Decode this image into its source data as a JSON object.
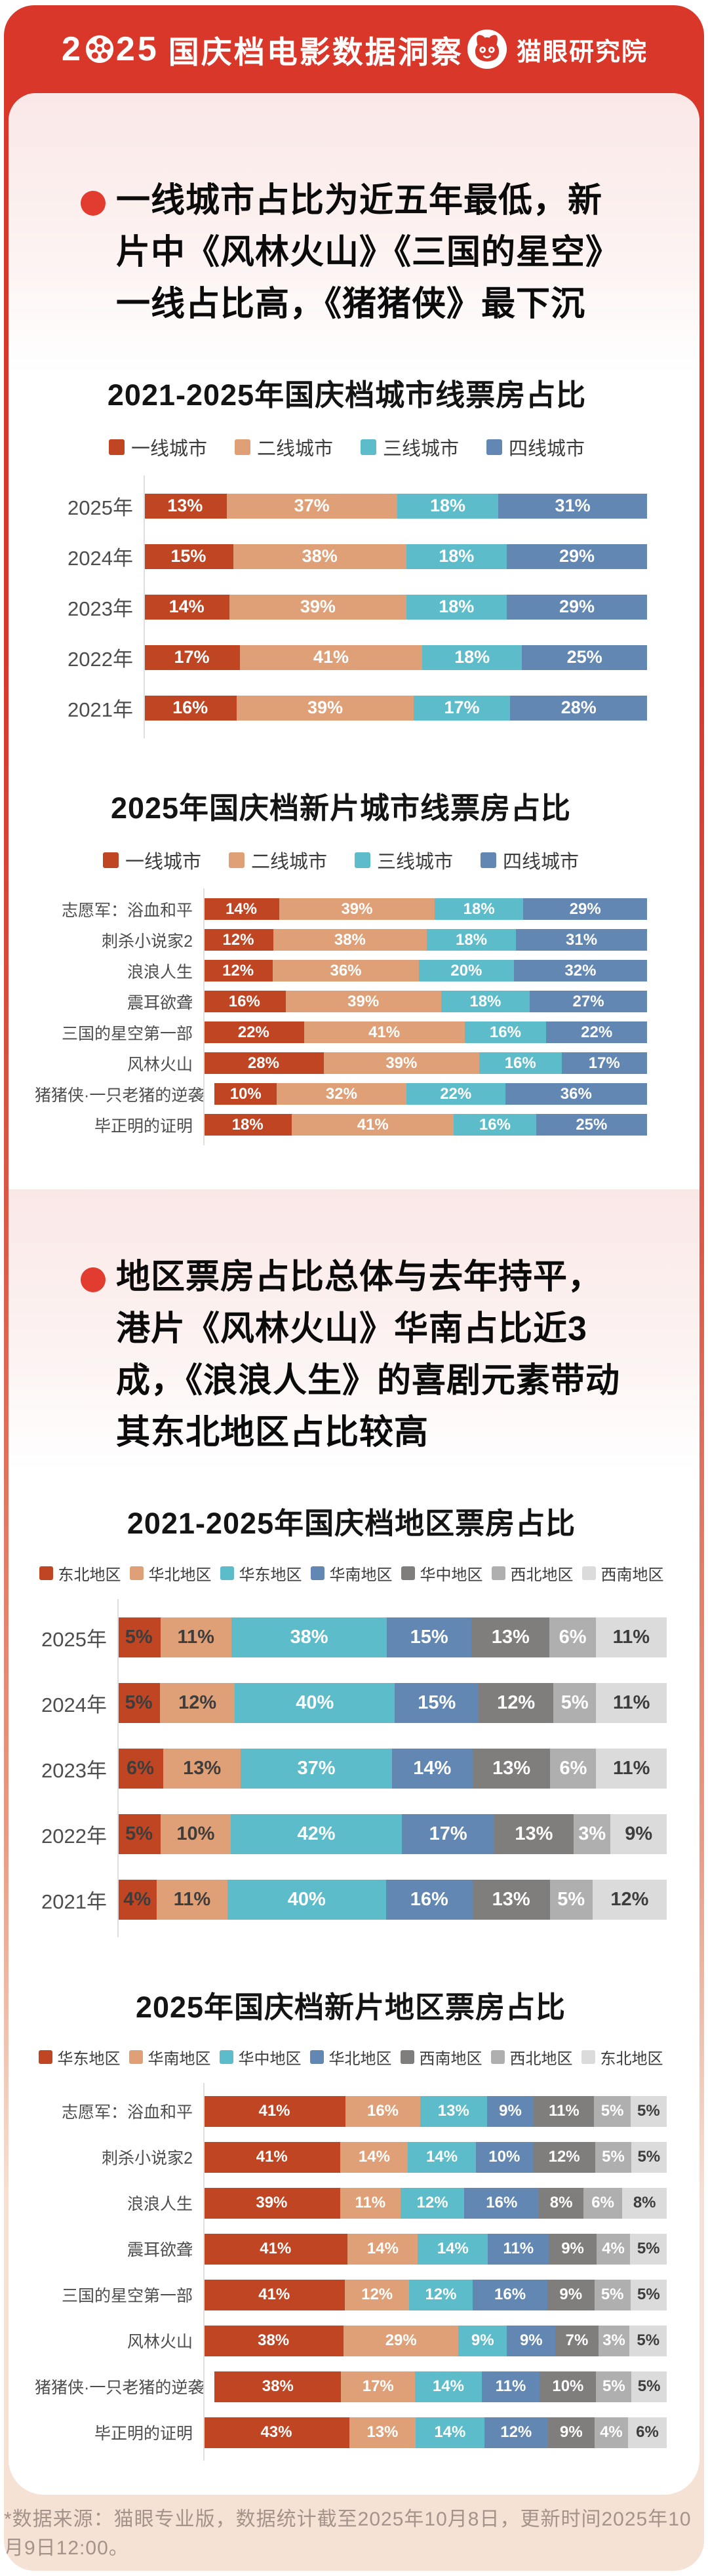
{
  "header": {
    "year": "2025",
    "title": "国庆档电影数据洞察",
    "brand": "猫眼研究院"
  },
  "colors": {
    "page_red": "#DA372B",
    "footer_peach": "#F6E2D5",
    "bullet_dot_red": "#E23B30",
    "series_red": "#C04522",
    "series_salmon": "#DFA077",
    "series_teal": "#5CBCC9",
    "series_steelblue": "#6287B2",
    "series_darkgray": "#807E7D",
    "series_midgray": "#AFAFAF",
    "series_lightgray": "#DBDBDB"
  },
  "sections": [
    {
      "bullet": "一线城市占比为近五年最低，新片中《风林火山》《三国的星空》一线占比高，《猪猪侠》最下沉"
    },
    {
      "bullet": "地区票房占比总体与去年持平，港片《风林火山》华南占比近3成，《浪浪人生》的喜剧元素带动其东北地区占比较高"
    }
  ],
  "chart_data": [
    {
      "type": "bar",
      "stacked": true,
      "orientation": "horizontal",
      "unit": "%",
      "legend_position": "top",
      "title": "2021-2025年国庆档城市线票房占比",
      "categories": [
        "2025年",
        "2024年",
        "2023年",
        "2022年",
        "2021年"
      ],
      "series": [
        {
          "name": "一线城市",
          "color": "#C04522",
          "label_color": "#FFFFFF",
          "values": [
            13,
            15,
            14,
            17,
            16
          ]
        },
        {
          "name": "二线城市",
          "color": "#DFA077",
          "label_color": "#FFFFFF",
          "values": [
            37,
            38,
            39,
            41,
            39
          ]
        },
        {
          "name": "三线城市",
          "color": "#5CBCC9",
          "label_color": "#FFFFFF",
          "values": [
            18,
            18,
            18,
            18,
            17
          ]
        },
        {
          "name": "四线城市",
          "color": "#6287B2",
          "label_color": "#FFFFFF",
          "values": [
            31,
            29,
            29,
            25,
            28
          ]
        }
      ]
    },
    {
      "type": "bar",
      "stacked": true,
      "orientation": "horizontal",
      "unit": "%",
      "legend_position": "top",
      "title": "2025年国庆档新片城市线票房占比",
      "categories": [
        "志愿军：浴血和平",
        "刺杀小说家2",
        "浪浪人生",
        "震耳欲聋",
        "三国的星空第一部",
        "风林火山",
        "猪猪侠·一只老猪的逆袭",
        "毕正明的证明"
      ],
      "series": [
        {
          "name": "一线城市",
          "color": "#C04522",
          "label_color": "#FFFFFF",
          "values": [
            14,
            12,
            12,
            16,
            22,
            28,
            10,
            18
          ]
        },
        {
          "name": "二线城市",
          "color": "#DFA077",
          "label_color": "#FFFFFF",
          "values": [
            39,
            38,
            36,
            39,
            41,
            39,
            32,
            41
          ]
        },
        {
          "name": "三线城市",
          "color": "#5CBCC9",
          "label_color": "#FFFFFF",
          "values": [
            18,
            18,
            20,
            18,
            16,
            16,
            22,
            16
          ]
        },
        {
          "name": "四线城市",
          "color": "#6287B2",
          "label_color": "#FFFFFF",
          "values": [
            29,
            31,
            32,
            27,
            22,
            17,
            36,
            25
          ]
        }
      ]
    },
    {
      "type": "bar",
      "stacked": true,
      "orientation": "horizontal",
      "unit": "%",
      "legend_position": "top",
      "title": "2021-2025年国庆档地区票房占比",
      "categories": [
        "2025年",
        "2024年",
        "2023年",
        "2022年",
        "2021年"
      ],
      "series": [
        {
          "name": "东北地区",
          "color": "#C04522",
          "label_color": "#3D3D3D",
          "values": [
            5,
            5,
            6,
            5,
            4
          ]
        },
        {
          "name": "华北地区",
          "color": "#DFA077",
          "label_color": "#3D3D3D",
          "values": [
            11,
            12,
            13,
            10,
            11
          ]
        },
        {
          "name": "华东地区",
          "color": "#5CBCC9",
          "label_color": "#FFFFFF",
          "values": [
            38,
            40,
            37,
            42,
            40
          ]
        },
        {
          "name": "华南地区",
          "color": "#6287B2",
          "label_color": "#FFFFFF",
          "values": [
            15,
            15,
            14,
            17,
            16
          ]
        },
        {
          "name": "华中地区",
          "color": "#807E7D",
          "label_color": "#FFFFFF",
          "values": [
            13,
            12,
            13,
            13,
            13
          ]
        },
        {
          "name": "西北地区",
          "color": "#AFAFAF",
          "label_color": "#FFFFFF",
          "values": [
            6,
            5,
            6,
            3,
            5
          ]
        },
        {
          "name": "西南地区",
          "color": "#DBDBDB",
          "label_color": "#3D3D3D",
          "values": [
            11,
            11,
            11,
            9,
            12
          ]
        }
      ]
    },
    {
      "type": "bar",
      "stacked": true,
      "orientation": "horizontal",
      "unit": "%",
      "legend_position": "top",
      "title": "2025年国庆档新片地区票房占比",
      "categories": [
        "志愿军：浴血和平",
        "刺杀小说家2",
        "浪浪人生",
        "震耳欲聋",
        "三国的星空第一部",
        "风林火山",
        "猪猪侠·一只老猪的逆袭",
        "毕正明的证明"
      ],
      "series": [
        {
          "name": "华东地区",
          "color": "#C04522",
          "label_color": "#FFFFFF",
          "values": [
            41,
            41,
            39,
            41,
            41,
            38,
            38,
            43
          ]
        },
        {
          "name": "华南地区",
          "color": "#DFA077",
          "label_color": "#FFFFFF",
          "values": [
            16,
            14,
            11,
            14,
            12,
            29,
            17,
            13
          ]
        },
        {
          "name": "华中地区",
          "color": "#5CBCC9",
          "label_color": "#FFFFFF",
          "values": [
            13,
            14,
            12,
            14,
            12,
            9,
            14,
            14
          ]
        },
        {
          "name": "华北地区",
          "color": "#6287B2",
          "label_color": "#FFFFFF",
          "values": [
            9,
            10,
            16,
            11,
            16,
            9,
            11,
            12
          ]
        },
        {
          "name": "西南地区",
          "color": "#807E7D",
          "label_color": "#FFFFFF",
          "values": [
            11,
            12,
            8,
            9,
            9,
            7,
            10,
            9
          ]
        },
        {
          "name": "西北地区",
          "color": "#AFAFAF",
          "label_color": "#FFFFFF",
          "values": [
            5,
            5,
            6,
            4,
            5,
            3,
            5,
            4
          ]
        },
        {
          "name": "东北地区",
          "color": "#DBDBDB",
          "label_color": "#3D3D3D",
          "values": [
            5,
            5,
            8,
            5,
            5,
            5,
            5,
            6
          ]
        }
      ]
    }
  ],
  "footer": {
    "note": "*数据来源：猫眼专业版，数据统计截至2025年10月8日，更新时间2025年10月9日12:00。"
  }
}
